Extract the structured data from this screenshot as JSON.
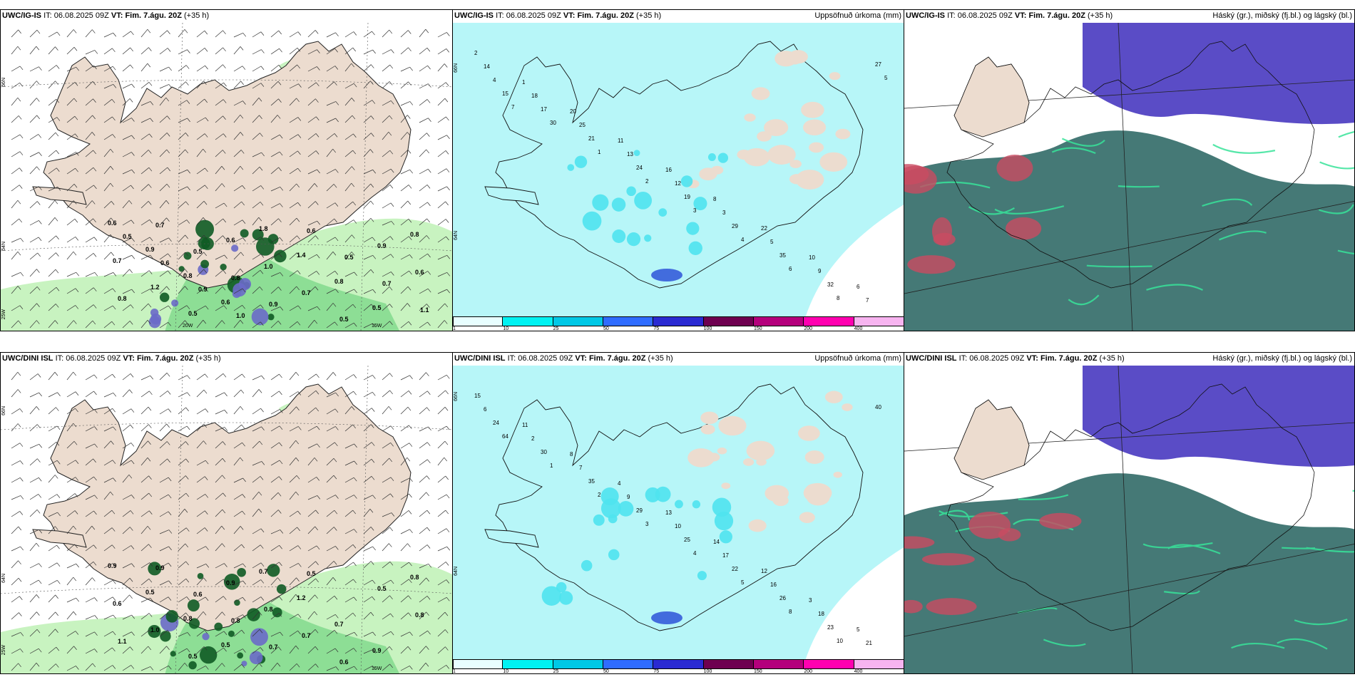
{
  "panels": {
    "ig_wind": {
      "model": "UWC/IG-IS",
      "it_label": "IT:",
      "it_value": "06.08.2025 09Z",
      "vt_label": "VT:",
      "vt_value": "Fim. 7.águ. 20Z",
      "lead": "(+35 h)",
      "lat_labels": [
        "66N",
        "64N",
        "25W"
      ],
      "lon_labels": [
        "20W",
        "15W"
      ],
      "value_labels": [
        "0.6",
        "0.9",
        "0.8",
        "0.6",
        "1.8",
        "1.4",
        "0.8",
        "0.5",
        "0.8",
        "0.7",
        "1.2",
        "0.5",
        "0.6",
        "1.0",
        "0.7",
        "0.5",
        "0.9",
        "0.6",
        "0.8",
        "0.7",
        "0.5",
        "0.8",
        "0.9",
        "0.6",
        "0.5",
        "0.7",
        "1.1",
        "0.5",
        "0.6",
        "0.9",
        "1.0"
      ]
    },
    "ig_precip": {
      "model": "UWC/IG-IS",
      "it_label": "IT:",
      "it_value": "06.08.2025 09Z",
      "vt_label": "VT:",
      "vt_value": "Fim. 7.águ. 20Z",
      "lead": "(+35 h)",
      "product": "Uppsöfnuð úrkoma (mm)",
      "lat_labels": [
        "66N",
        "64N"
      ],
      "value_labels": [
        "2",
        "1",
        "20",
        "11",
        "16",
        "8",
        "22",
        "10",
        "6",
        "14",
        "18",
        "25",
        "13",
        "12",
        "3",
        "5",
        "9",
        "7",
        "4",
        "17",
        "21",
        "24",
        "19",
        "29",
        "35",
        "32",
        "27",
        "15",
        "30",
        "1",
        "2",
        "3",
        "4",
        "6",
        "8",
        "5",
        "7"
      ]
    },
    "ig_cloud": {
      "model": "UWC/IG-IS",
      "it_label": "IT:",
      "it_value": "06.08.2025 09Z",
      "vt_label": "VT:",
      "vt_value": "Fim. 7.águ. 20Z",
      "lead": "(+35 h)",
      "product": "Háský (gr.), miðský (fj.bl.) og lágský (bl.)"
    },
    "dini_wind": {
      "model": "UWC/DINI ISL",
      "it_label": "IT:",
      "it_value": "06.08.2025 09Z",
      "vt_label": "VT:",
      "vt_value": "Fim. 7.águ. 20Z",
      "lead": "(+35 h)",
      "lat_labels": [
        "66N",
        "64N",
        "25W"
      ],
      "lon_labels": [
        "15W"
      ],
      "value_labels": [
        "0.9",
        "0.5",
        "0.8",
        "0.5",
        "0.7",
        "1.2",
        "0.7",
        "0.9",
        "0.8",
        "0.6",
        "1.0",
        "0.5",
        "0.9",
        "0.8",
        "0.7",
        "0.6",
        "0.5",
        "0.8",
        "1.1",
        "0.9",
        "0.6",
        "0.8",
        "0.7",
        "0.5"
      ]
    },
    "dini_precip": {
      "model": "UWC/DINI ISL",
      "it_label": "IT:",
      "it_value": "06.08.2025 09Z",
      "vt_label": "VT:",
      "vt_value": "Fim. 7.águ. 20Z",
      "lead": "(+35 h)",
      "product": "Uppsöfnuð úrkoma (mm)",
      "lat_labels": [
        "66N",
        "64N"
      ],
      "value_labels": [
        "15",
        "11",
        "8",
        "4",
        "13",
        "14",
        "12",
        "3",
        "5",
        "6",
        "2",
        "7",
        "9",
        "10",
        "17",
        "16",
        "18",
        "21",
        "24",
        "30",
        "35",
        "29",
        "25",
        "22",
        "26",
        "23",
        "40",
        "64",
        "1",
        "2",
        "3",
        "4",
        "5",
        "8",
        "10"
      ]
    },
    "dini_cloud": {
      "model": "UWC/DINI ISL",
      "it_label": "IT:",
      "it_value": "06.08.2025 09Z",
      "vt_label": "VT:",
      "vt_value": "Fim. 7.águ. 20Z",
      "lead": "(+35 h)",
      "product": "Háský (gr.), miðský (fj.bl.) og lágský (bl.)"
    }
  },
  "colorbar": {
    "ticks": [
      "1",
      "10",
      "25",
      "50",
      "75",
      "100",
      "150",
      "200",
      "400"
    ],
    "colors": [
      "#e8feff",
      "#00f2f2",
      "#00c8e6",
      "#2f6cff",
      "#2a2ad2",
      "#6e0050",
      "#b4007c",
      "#ff00b0",
      "#f7b4f0"
    ]
  },
  "colors": {
    "land": "#ecdccf",
    "sea_wind": "#ffffff",
    "precip_light": "#b7f6f8",
    "precip_mid": "#4fe3ee",
    "precip_heavy": "#2e53d8",
    "green_light": "#c8f3c0",
    "green_mid": "#7ed88a",
    "green_dark": "#0f5b24",
    "cloud_high": "#c94b61",
    "cloud_mid": "#5a4cc6",
    "cloud_low": "#356e6a",
    "cloud_low_edge": "#38e39a"
  }
}
